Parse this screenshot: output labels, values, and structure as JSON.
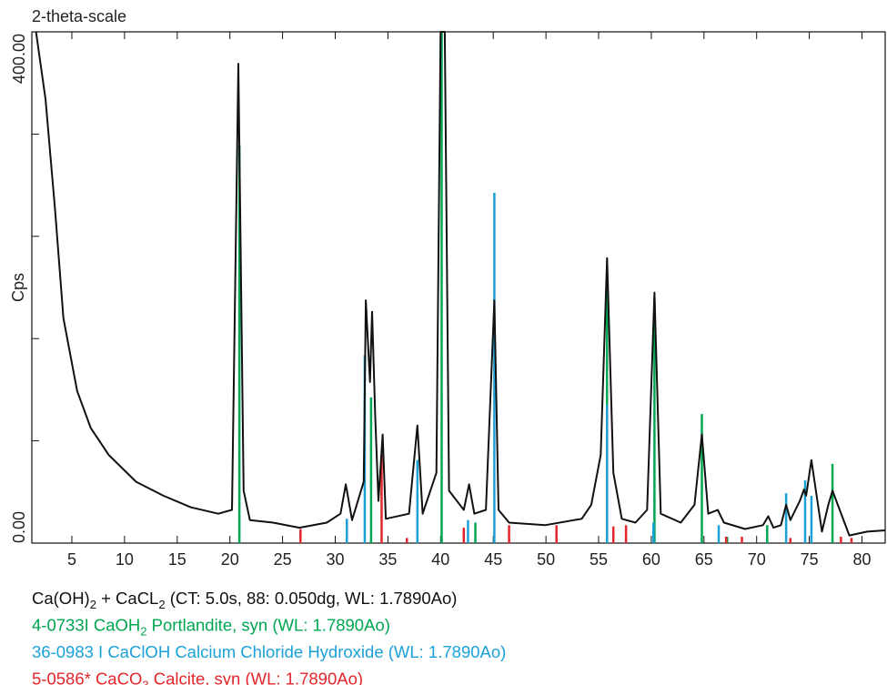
{
  "chart_data": {
    "type": "line",
    "title": "2-theta-scale",
    "y_label": "Cps",
    "xlim": [
      1.2,
      82.2
    ],
    "ylim": [
      0,
      400
    ],
    "xticks": [
      5,
      10,
      15,
      20,
      25,
      30,
      35,
      40,
      45,
      50,
      55,
      60,
      65,
      70,
      75,
      80
    ],
    "yticks": [
      {
        "value": 0,
        "label": "0.00"
      },
      {
        "value": 400,
        "label": "400.00"
      }
    ],
    "yminorticks": [
      80,
      160,
      240,
      320
    ],
    "series": [
      {
        "name_parts": [
          "Ca(OH)",
          "2",
          " + CaCL",
          "2",
          " (CT: 5.0s, 88: 0.050dg, WL: 1.7890Ao)"
        ],
        "style": "curve",
        "color": "#111111",
        "x": [
          1.6,
          2.5,
          3.4,
          4.2,
          5.5,
          6.8,
          8.5,
          11.1,
          13.7,
          16.3,
          18.9,
          20.2,
          20.8,
          21.3,
          21.9,
          24.1,
          26.6,
          29.2,
          30.5,
          31.0,
          31.6,
          32.7,
          32.9,
          33.3,
          33.5,
          33.8,
          34.1,
          34.5,
          34.8,
          37.0,
          37.8,
          38.3,
          39.6,
          40.0,
          40.4,
          40.8,
          42.2,
          42.7,
          43.2,
          44.3,
          45.1,
          45.5,
          46.5,
          49.9,
          53.4,
          54.3,
          55.2,
          55.8,
          56.4,
          57.2,
          58.5,
          59.6,
          60.3,
          60.9,
          62.8,
          64.1,
          64.8,
          65.4,
          66.3,
          66.9,
          68.9,
          70.6,
          71.1,
          71.6,
          72.3,
          72.8,
          73.2,
          74.1,
          74.5,
          74.7,
          75.2,
          75.5,
          76.2,
          76.8,
          77.2,
          77.7,
          78.8,
          80.5,
          82.2
        ],
        "values": [
          400,
          347,
          261,
          176,
          119,
          90,
          69,
          48,
          37,
          28,
          23,
          26,
          375,
          41,
          18,
          16,
          12,
          16,
          23,
          46,
          18,
          48,
          190,
          126,
          181,
          98,
          33,
          85,
          19,
          23,
          92,
          23,
          55,
          400,
          400,
          41,
          26,
          46,
          23,
          26,
          190,
          26,
          16,
          14,
          19,
          30,
          69,
          223,
          55,
          19,
          16,
          26,
          196,
          23,
          16,
          30,
          85,
          23,
          26,
          16,
          11,
          14,
          21,
          12,
          14,
          30,
          18,
          33,
          42,
          37,
          65,
          48,
          9,
          30,
          41,
          30,
          6,
          9,
          10
        ]
      },
      {
        "name_parts": [
          "4-0733I CaOH",
          "2",
          " Portlandite, syn (WL: 1.7890Ao)"
        ],
        "style": "stick",
        "color": "#00a651",
        "x": [
          20.9,
          33.4,
          40.1,
          43.3,
          55.8,
          60.3,
          64.8,
          67.2,
          71.0,
          77.2
        ],
        "values": [
          311,
          114,
          400,
          16,
          211,
          190,
          101,
          5,
          14,
          62
        ]
      },
      {
        "name_parts": [
          "36-0983 I CaClOH Calcium Chloride Hydroxide (WL: 1.7890Ao)"
        ],
        "style": "stick",
        "color": "#1ba1d8",
        "x": [
          31.1,
          32.8,
          37.8,
          42.6,
          45.1,
          55.8,
          60.2,
          66.4,
          72.8,
          74.6,
          75.2
        ],
        "values": [
          19,
          147,
          65,
          18,
          274,
          108,
          16,
          14,
          39,
          49,
          37
        ]
      },
      {
        "name_parts": [
          "5-0586* CaCO",
          "3",
          " Calcite, syn (WL: 1.7890Ao)"
        ],
        "style": "stick",
        "color": "#e3262b",
        "x": [
          26.7,
          34.4,
          36.8,
          42.2,
          46.5,
          51.0,
          56.4,
          57.6,
          67.1,
          68.6,
          73.2,
          78.0,
          79.0
        ],
        "values": [
          11,
          69,
          4,
          12,
          14,
          14,
          13,
          14,
          5,
          5,
          4,
          5,
          4
        ]
      }
    ]
  }
}
